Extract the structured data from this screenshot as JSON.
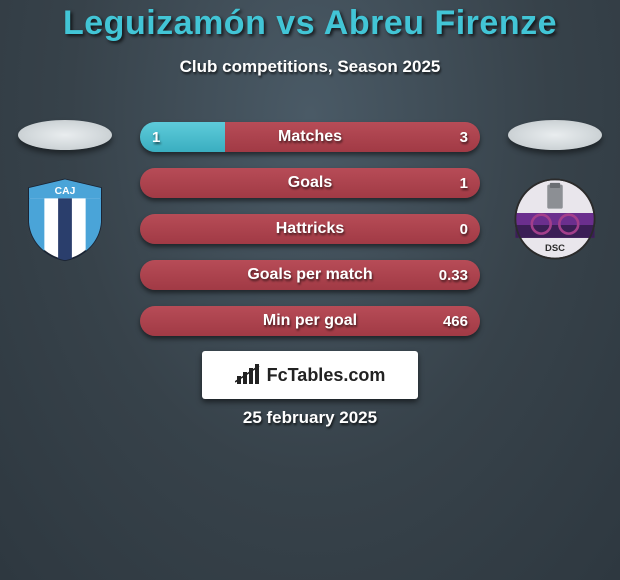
{
  "header": {
    "title": "Leguizamón vs Abreu Firenze",
    "subtitle": "Club competitions, Season 2025",
    "title_color": "#42c5d6"
  },
  "stats": {
    "left_bar_color_top": "#5ecbda",
    "left_bar_color_bottom": "#3aaec0",
    "right_bar_color_top": "#b74c57",
    "right_bar_color_bottom": "#a13a45",
    "rows": [
      {
        "label": "Matches",
        "left_val": "1",
        "right_val": "3",
        "left_pct": 25,
        "right_pct": 75
      },
      {
        "label": "Goals",
        "left_val": "",
        "right_val": "1",
        "left_pct": 0,
        "right_pct": 100
      },
      {
        "label": "Hattricks",
        "left_val": "",
        "right_val": "0",
        "left_pct": 0,
        "right_pct": 100
      },
      {
        "label": "Goals per match",
        "left_val": "",
        "right_val": "0.33",
        "left_pct": 0,
        "right_pct": 100
      },
      {
        "label": "Min per goal",
        "left_val": "",
        "right_val": "466",
        "left_pct": 0,
        "right_pct": 100
      }
    ]
  },
  "footer": {
    "logo_text": "FcTables.com",
    "date": "25 february 2025"
  },
  "crests": {
    "left": {
      "shield_bg": "#ffffff",
      "stripe_color": "#4aa4d8",
      "center_stripe_color": "#2a3e6c",
      "monogram": "CAJ"
    },
    "right": {
      "outer_bg": "#e9e6ec",
      "band_color_top": "#6b2f8e",
      "band_color_bottom": "#3b1e56",
      "detail_color": "#a33f8b",
      "monogram": "DSC"
    }
  }
}
